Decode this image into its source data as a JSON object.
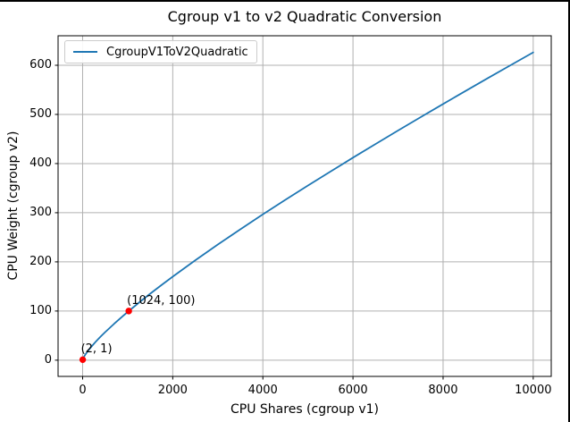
{
  "window": {
    "background": "#ffffff",
    "border_color": "#000000"
  },
  "chart_data": {
    "type": "line",
    "title": "Cgroup v1 to v2 Quadratic Conversion",
    "xlabel": "CPU Shares (cgroup v1)",
    "ylabel": "CPU Weight (cgroup v2)",
    "xlim": [
      -545,
      10400
    ],
    "ylim": [
      -33,
      660
    ],
    "x_ticks": [
      0,
      2000,
      4000,
      6000,
      8000,
      10000
    ],
    "y_ticks": [
      0,
      100,
      200,
      300,
      400,
      500,
      600
    ],
    "grid": true,
    "grid_color": "#b0b0b0",
    "spine_color": "#000000",
    "legend": {
      "position": "upper left",
      "entries": [
        {
          "label": "CgroupV1ToV2Quadratic",
          "color": "#1f77b4"
        }
      ]
    },
    "series": [
      {
        "name": "CgroupV1ToV2Quadratic",
        "color": "#1f77b4",
        "points": [
          [
            2,
            1
          ],
          [
            25,
            6
          ],
          [
            50,
            10
          ],
          [
            100,
            16.7
          ],
          [
            150,
            22.7
          ],
          [
            200,
            28.2
          ],
          [
            300,
            38.5
          ],
          [
            400,
            48.1
          ],
          [
            500,
            57.1
          ],
          [
            700,
            74.2
          ],
          [
            900,
            90.4
          ],
          [
            1024,
            100
          ],
          [
            1250,
            117
          ],
          [
            1500,
            135.2
          ],
          [
            1750,
            152.8
          ],
          [
            2000,
            170
          ],
          [
            2500,
            203.2
          ],
          [
            3000,
            235.2
          ],
          [
            3500,
            266.2
          ],
          [
            4000,
            296.5
          ],
          [
            4500,
            326.2
          ],
          [
            5000,
            355.3
          ],
          [
            5500,
            383.8
          ],
          [
            6000,
            412
          ],
          [
            6500,
            439.8
          ],
          [
            7000,
            467.2
          ],
          [
            7500,
            494.3
          ],
          [
            8000,
            521.2
          ],
          [
            8500,
            547.8
          ],
          [
            9000,
            574.2
          ],
          [
            9500,
            600.2
          ],
          [
            10000,
            626.2
          ]
        ]
      }
    ],
    "markers": [
      {
        "x": 2,
        "y": 1,
        "label": "(2, 1)",
        "color": "#ff0000"
      },
      {
        "x": 1024,
        "y": 100,
        "label": "(1024, 100)",
        "color": "#ff0000"
      }
    ]
  }
}
